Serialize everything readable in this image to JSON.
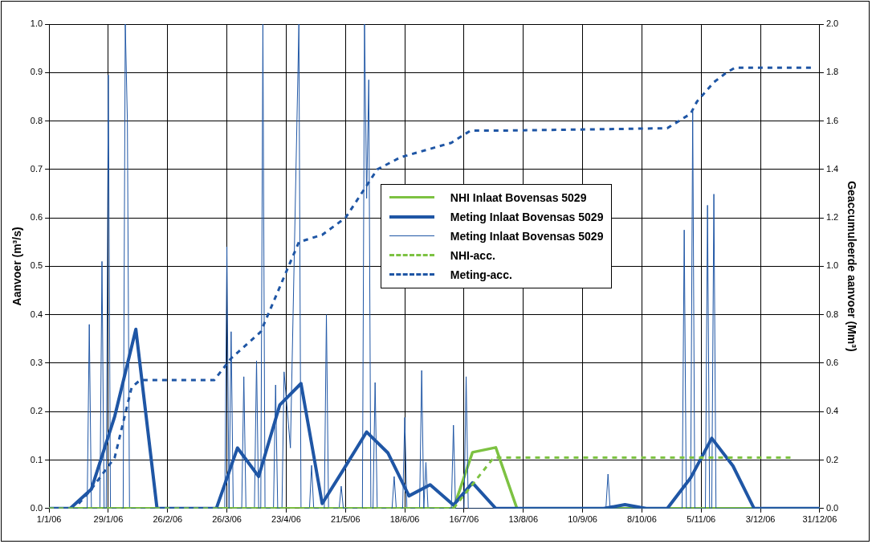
{
  "chart_data": {
    "type": "line",
    "ylabel": "Aanvoer (m³/s)",
    "y2label": "Geaccumuleerde aanvoer (Mm³)",
    "xlim": [
      "2006-01-01",
      "2006-12-31"
    ],
    "xticks": [
      {
        "value": "2006-01-01",
        "label": "1/1/06"
      },
      {
        "value": "2006-01-29",
        "label": "29/1/06"
      },
      {
        "value": "2006-02-26",
        "label": "26/2/06"
      },
      {
        "value": "2006-03-26",
        "label": "26/3/06"
      },
      {
        "value": "2006-04-23",
        "label": "23/4/06"
      },
      {
        "value": "2006-05-21",
        "label": "21/5/06"
      },
      {
        "value": "2006-06-18",
        "label": "18/6/06"
      },
      {
        "value": "2006-07-16",
        "label": "16/7/06"
      },
      {
        "value": "2006-08-13",
        "label": "13/8/06"
      },
      {
        "value": "2006-09-10",
        "label": "10/9/06"
      },
      {
        "value": "2006-10-08",
        "label": "8/10/06"
      },
      {
        "value": "2006-11-05",
        "label": "5/11/06"
      },
      {
        "value": "2006-12-03",
        "label": "3/12/06"
      },
      {
        "value": "2006-12-31",
        "label": "31/12/06"
      }
    ],
    "ylim": [
      0,
      1
    ],
    "yticks": [
      {
        "value": 0,
        "label": "0.0"
      },
      {
        "value": 0.1,
        "label": "0.1"
      },
      {
        "value": 0.2,
        "label": "0.2"
      },
      {
        "value": 0.3,
        "label": "0.3"
      },
      {
        "value": 0.4,
        "label": "0.4"
      },
      {
        "value": 0.5,
        "label": "0.5"
      },
      {
        "value": 0.6,
        "label": "0.6"
      },
      {
        "value": 0.7,
        "label": "0.7"
      },
      {
        "value": 0.8,
        "label": "0.8"
      },
      {
        "value": 0.9,
        "label": "0.9"
      },
      {
        "value": 1,
        "label": "1.0"
      }
    ],
    "y2lim": [
      0,
      2
    ],
    "y2ticks": [
      {
        "value": 0,
        "label": "0.0"
      },
      {
        "value": 0.2,
        "label": "0.2"
      },
      {
        "value": 0.4,
        "label": "0.4"
      },
      {
        "value": 0.6,
        "label": "0.6"
      },
      {
        "value": 0.8,
        "label": "0.8"
      },
      {
        "value": 1,
        "label": "1.0"
      },
      {
        "value": 1.2,
        "label": "1.2"
      },
      {
        "value": 1.4,
        "label": "1.4"
      },
      {
        "value": 1.6,
        "label": "1.6"
      },
      {
        "value": 1.8,
        "label": "1.8"
      },
      {
        "value": 2,
        "label": "2.0"
      }
    ],
    "grid": true,
    "legend": "top",
    "marker": "none",
    "series": [
      {
        "name": "NHI Inlaat Bovensas 5029",
        "color": "#7dc242",
        "line_style": "solid",
        "x": [
          "2006-01-01",
          "2006-07-11",
          "2006-07-20",
          "2006-07-31",
          "2006-08-10",
          "2006-12-31"
        ],
        "values": [
          0,
          0,
          0.116,
          0.126,
          0,
          0
        ]
      },
      {
        "name": "Meting Inlaat Bovensas 5029",
        "color": "#1f56a5",
        "line_style": "solid",
        "x": [
          "2006-01-01",
          "2006-01-11",
          "2006-01-21",
          "2006-02-01",
          "2006-02-11",
          "2006-02-21",
          "2006-03-21",
          "2006-03-31",
          "2006-04-10",
          "2006-04-20",
          "2006-04-30",
          "2006-05-10",
          "2006-05-20",
          "2006-05-31",
          "2006-06-10",
          "2006-06-20",
          "2006-06-30",
          "2006-07-11",
          "2006-07-20",
          "2006-07-31",
          "2006-09-20",
          "2006-09-30",
          "2006-10-10",
          "2006-10-20",
          "2006-10-31",
          "2006-11-10",
          "2006-11-20",
          "2006-11-30",
          "2006-12-31"
        ],
        "values": [
          0,
          0,
          0.04,
          0.19,
          0.37,
          0,
          0,
          0.125,
          0.066,
          0.214,
          0.258,
          0.01,
          0.08,
          0.158,
          0.115,
          0.026,
          0.049,
          0.007,
          0.053,
          0,
          0,
          0.008,
          0,
          0,
          0.063,
          0.145,
          0.088,
          0,
          0
        ]
      },
      {
        "name": "Meting Inlaat Bovensas 5029",
        "color": "#1f56a5",
        "line_style": "solid",
        "x": [
          "2006-01-01",
          "2006-01-19",
          "2006-01-20",
          "2006-01-21",
          "2006-01-25",
          "2006-01-26",
          "2006-01-27",
          "2006-01-28",
          "2006-01-29",
          "2006-01-30",
          "2006-02-05",
          "2006-02-06",
          "2006-02-07",
          "2006-02-08",
          "2006-03-25",
          "2006-03-26",
          "2006-03-27",
          "2006-03-28",
          "2006-03-29",
          "2006-04-02",
          "2006-04-03",
          "2006-04-04",
          "2006-04-08",
          "2006-04-09",
          "2006-04-10",
          "2006-04-11",
          "2006-04-12",
          "2006-04-13",
          "2006-04-17",
          "2006-04-18",
          "2006-04-19",
          "2006-04-21",
          "2006-04-22",
          "2006-04-25",
          "2006-04-29",
          "2006-04-30",
          "2006-05-04",
          "2006-05-05",
          "2006-05-06",
          "2006-05-11",
          "2006-05-12",
          "2006-05-13",
          "2006-05-18",
          "2006-05-19",
          "2006-05-20",
          "2006-05-29",
          "2006-05-30",
          "2006-05-31",
          "2006-06-01",
          "2006-06-02",
          "2006-06-03",
          "2006-06-04",
          "2006-06-05",
          "2006-06-12",
          "2006-06-13",
          "2006-06-14",
          "2006-06-17",
          "2006-06-18",
          "2006-06-19",
          "2006-06-25",
          "2006-06-26",
          "2006-06-27",
          "2006-06-28",
          "2006-06-29",
          "2006-07-10",
          "2006-07-11",
          "2006-07-12",
          "2006-07-16",
          "2006-07-17",
          "2006-07-18",
          "2006-09-21",
          "2006-09-22",
          "2006-09-23",
          "2006-10-27",
          "2006-10-28",
          "2006-10-29",
          "2006-10-31",
          "2006-11-01",
          "2006-11-02",
          "2006-11-07",
          "2006-11-08",
          "2006-11-09",
          "2006-11-10",
          "2006-11-11",
          "2006-11-12",
          "2006-12-31"
        ],
        "values": [
          0,
          0,
          0.38,
          0,
          0,
          0.51,
          0,
          0,
          0.895,
          0,
          0,
          1,
          0.8,
          0,
          0,
          0.54,
          0,
          0.365,
          0,
          0,
          0.272,
          0,
          0,
          0.305,
          0,
          0,
          1,
          0,
          0,
          0.255,
          0,
          0,
          0.282,
          0.125,
          1,
          0,
          0,
          0.089,
          0,
          0,
          0.4,
          0,
          0,
          0.046,
          0,
          0,
          1,
          0.64,
          0.885,
          0,
          0,
          0.26,
          0,
          0,
          0.066,
          0,
          0,
          0.188,
          0,
          0,
          0.285,
          0,
          0.095,
          0,
          0,
          0.172,
          0,
          0,
          0.272,
          0,
          0,
          0.071,
          0,
          0,
          0.575,
          0,
          0,
          0.82,
          0,
          0,
          0.626,
          0,
          0,
          0.649,
          0,
          0
        ]
      },
      {
        "name": "NHI-acc.",
        "color": "#7dc242",
        "line_style": "dashed",
        "axis": "y2",
        "x": [
          "2006-01-01",
          "2006-07-11",
          "2006-07-30",
          "2006-12-18"
        ],
        "values": [
          0,
          0,
          0.21,
          0.21
        ]
      },
      {
        "name": "Meting-acc.",
        "color": "#1f56a5",
        "line_style": "dashed",
        "axis": "y2",
        "x": [
          "2006-01-15",
          "2006-01-21",
          "2006-02-01",
          "2006-02-09",
          "2006-02-13",
          "2006-03-20",
          "2006-03-28",
          "2006-04-11",
          "2006-04-29",
          "2006-05-10",
          "2006-05-21",
          "2006-06-05",
          "2006-06-16",
          "2006-07-10",
          "2006-07-19",
          "2006-08-01",
          "2006-10-20",
          "2006-10-31",
          "2006-11-03",
          "2006-11-11",
          "2006-11-17",
          "2006-11-21",
          "2006-12-28"
        ],
        "values": [
          0.02,
          0.08,
          0.21,
          0.5,
          0.53,
          0.53,
          0.62,
          0.73,
          1.1,
          1.13,
          1.2,
          1.4,
          1.45,
          1.51,
          1.56,
          1.56,
          1.57,
          1.63,
          1.68,
          1.76,
          1.8,
          1.82,
          1.82
        ]
      }
    ]
  }
}
